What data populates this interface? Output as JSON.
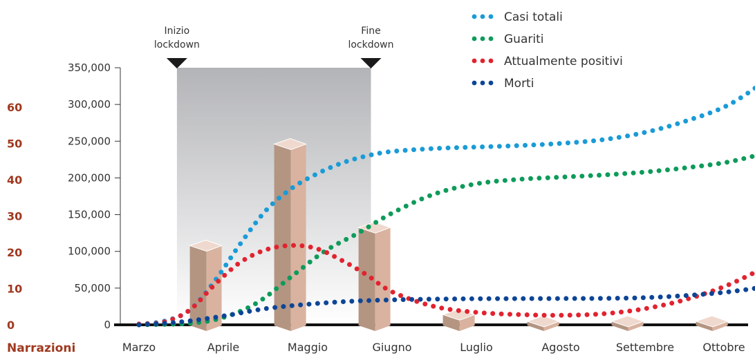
{
  "chart_data": {
    "type": "line",
    "x_ticks": [
      "Marzo",
      "Aprile",
      "Maggio",
      "Giugno",
      "Luglio",
      "Agosto",
      "Settembre",
      "Ottobre"
    ],
    "y_axis": {
      "ticks": [
        "0",
        "50,000",
        "100,000",
        "150,000",
        "200,000",
        "250,000",
        "300,000",
        "350,000"
      ],
      "tick_values": [
        0,
        50000,
        100000,
        150000,
        200000,
        250000,
        300000,
        350000
      ],
      "ylim": [
        0,
        350000
      ]
    },
    "y2_axis": {
      "label": "Narrazioni",
      "ticks": [
        "0",
        "10",
        "20",
        "30",
        "40",
        "50",
        "60"
      ],
      "tick_values": [
        0,
        10,
        20,
        30,
        40,
        50,
        60
      ],
      "ylim": [
        0,
        60
      ]
    },
    "lockdown": {
      "start_label": [
        "Inizio",
        "lockdown"
      ],
      "end_label": [
        "Fine",
        "lockdown"
      ],
      "start_month": 0.45,
      "end_month": 2.75
    },
    "series": [
      {
        "name": "Casi totali",
        "color": "#1a9bd7",
        "points": [
          [
            0,
            1000
          ],
          [
            0.3,
            5000
          ],
          [
            0.6,
            20000
          ],
          [
            0.9,
            60000
          ],
          [
            1.2,
            110000
          ],
          [
            1.5,
            155000
          ],
          [
            1.8,
            185000
          ],
          [
            2.1,
            205000
          ],
          [
            2.4,
            220000
          ],
          [
            2.7,
            230000
          ],
          [
            3.0,
            236000
          ],
          [
            3.5,
            240000
          ],
          [
            4.0,
            242000
          ],
          [
            4.5,
            244000
          ],
          [
            5.0,
            247000
          ],
          [
            5.5,
            252000
          ],
          [
            6.0,
            262000
          ],
          [
            6.5,
            278000
          ],
          [
            7.0,
            300000
          ],
          [
            7.5,
            338000
          ]
        ]
      },
      {
        "name": "Guariti",
        "color": "#0e9b5a",
        "points": [
          [
            0,
            0
          ],
          [
            0.6,
            2000
          ],
          [
            1.0,
            10000
          ],
          [
            1.4,
            30000
          ],
          [
            1.8,
            65000
          ],
          [
            2.2,
            100000
          ],
          [
            2.6,
            125000
          ],
          [
            3.0,
            152000
          ],
          [
            3.5,
            178000
          ],
          [
            4.0,
            192000
          ],
          [
            4.5,
            198000
          ],
          [
            5.0,
            201000
          ],
          [
            5.5,
            204000
          ],
          [
            6.0,
            208000
          ],
          [
            6.5,
            214000
          ],
          [
            7.0,
            222000
          ],
          [
            7.5,
            236000
          ]
        ]
      },
      {
        "name": "Attualmente positivi",
        "color": "#e1232f",
        "points": [
          [
            0,
            1000
          ],
          [
            0.3,
            4000
          ],
          [
            0.6,
            20000
          ],
          [
            0.9,
            55000
          ],
          [
            1.2,
            85000
          ],
          [
            1.5,
            102000
          ],
          [
            1.8,
            108000
          ],
          [
            2.1,
            104000
          ],
          [
            2.4,
            88000
          ],
          [
            2.7,
            68000
          ],
          [
            3.0,
            45000
          ],
          [
            3.5,
            25000
          ],
          [
            4.0,
            17000
          ],
          [
            4.5,
            14000
          ],
          [
            5.0,
            13000
          ],
          [
            5.5,
            15000
          ],
          [
            6.0,
            22000
          ],
          [
            6.5,
            35000
          ],
          [
            7.0,
            55000
          ],
          [
            7.5,
            83000
          ]
        ]
      },
      {
        "name": "Morti",
        "color": "#0d4596",
        "points": [
          [
            0,
            0
          ],
          [
            0.5,
            4000
          ],
          [
            1.0,
            12000
          ],
          [
            1.5,
            22000
          ],
          [
            2.0,
            28000
          ],
          [
            2.5,
            32000
          ],
          [
            3.0,
            34000
          ],
          [
            3.5,
            35000
          ],
          [
            4.0,
            35500
          ],
          [
            4.5,
            35700
          ],
          [
            5.0,
            35800
          ],
          [
            5.5,
            36000
          ],
          [
            6.0,
            37000
          ],
          [
            6.5,
            40000
          ],
          [
            7.0,
            45000
          ],
          [
            7.5,
            53000
          ]
        ]
      }
    ],
    "bars": {
      "name": "Narrazioni",
      "x": [
        0.8,
        1.8,
        2.8,
        3.8,
        4.8,
        5.8,
        6.8
      ],
      "values": [
        22,
        50,
        27,
        3,
        1,
        0,
        1
      ]
    },
    "legend": {
      "position": "top-right"
    }
  }
}
